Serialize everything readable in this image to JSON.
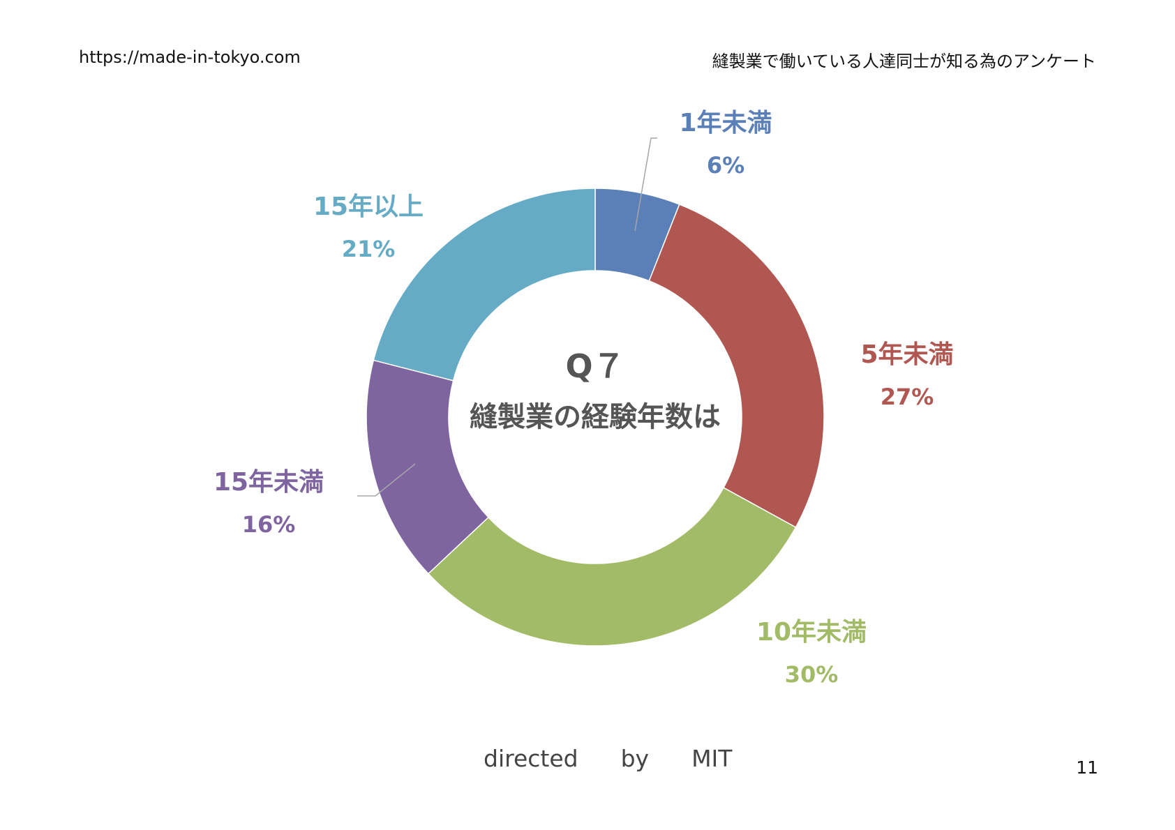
{
  "header": {
    "site": "https://made-in-tokyo.com",
    "title": "縫製業で働いている人達同士が知る為のアンケート"
  },
  "footer": {
    "word1": "directed",
    "word2": "by",
    "word3": "MIT",
    "page_number": "11"
  },
  "chart_data": {
    "type": "pie",
    "donut": true,
    "center_text": [
      "Q７",
      "縫製業の経験年数は"
    ],
    "categories": [
      "1年未満",
      "5年未満",
      "10年未満",
      "15年未満",
      "15年以上"
    ],
    "values": [
      6,
      27,
      30,
      16,
      21
    ],
    "value_labels": [
      "6%",
      "27%",
      "30%",
      "16%",
      "21%"
    ],
    "colors": [
      "#5b80b8",
      "#b15751",
      "#a1bb66",
      "#7e65a0",
      "#66abc5"
    ],
    "legend": "none"
  }
}
